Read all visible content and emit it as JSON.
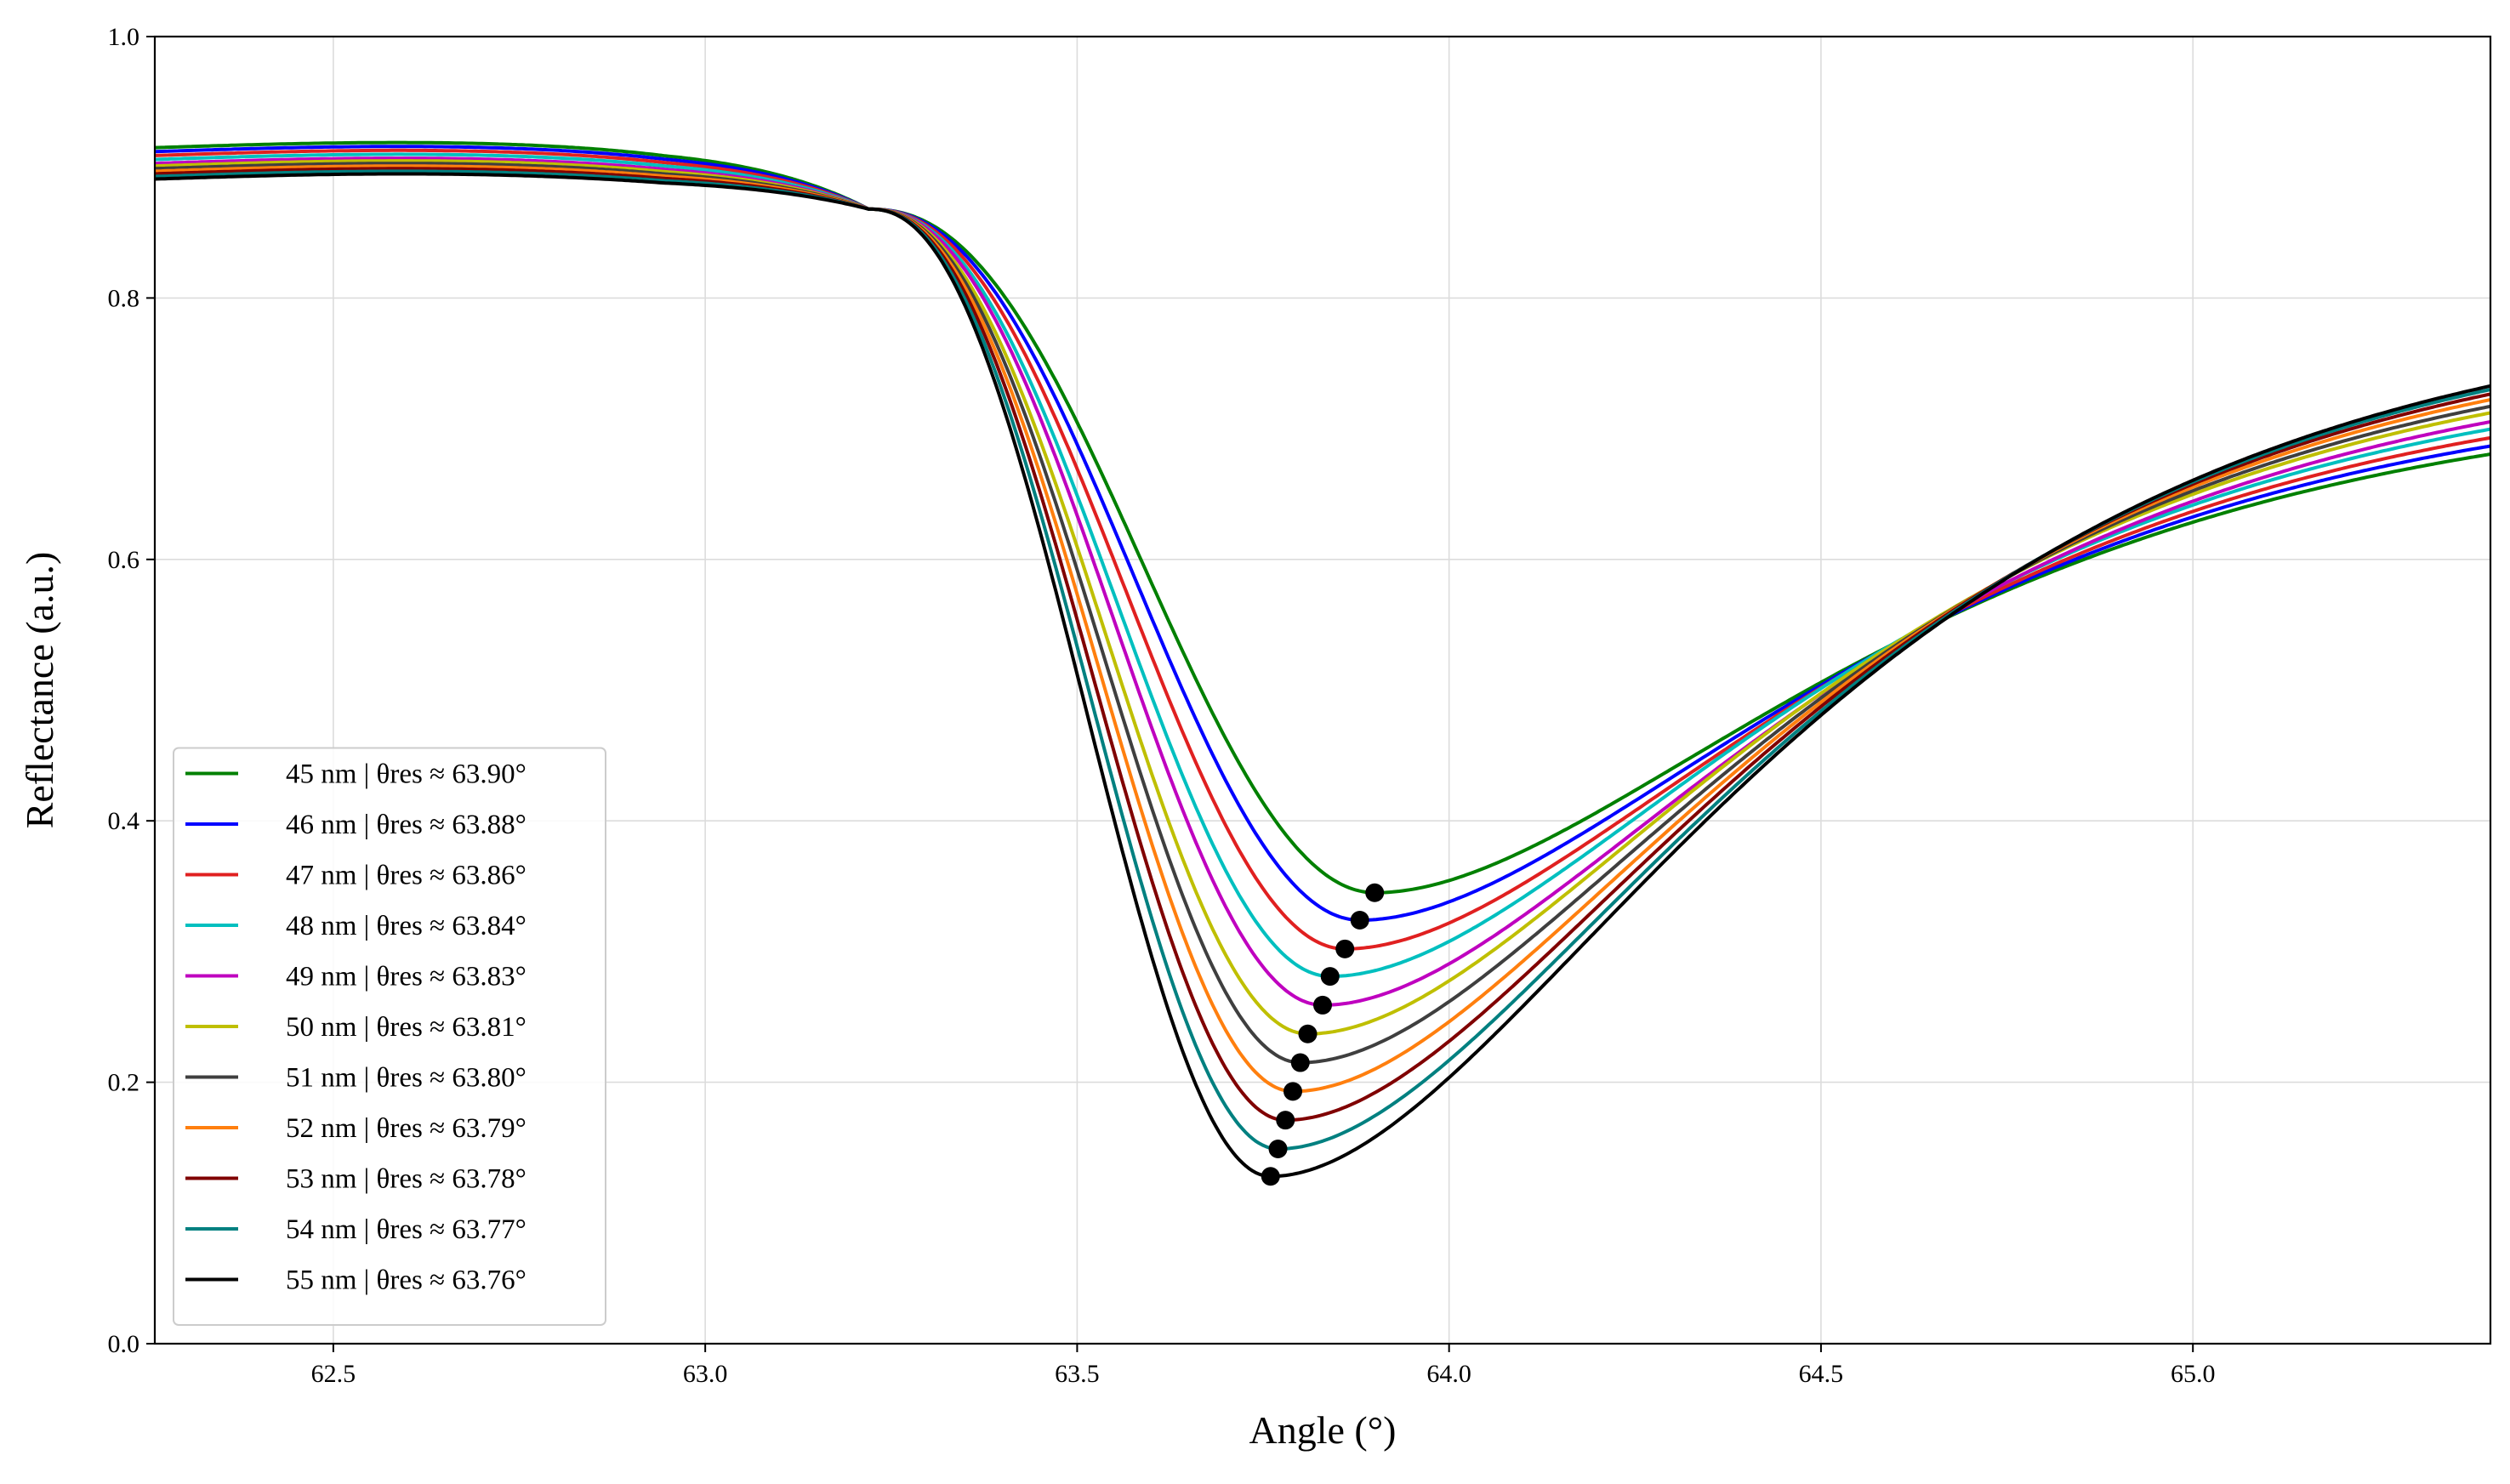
{
  "chart_data": {
    "type": "line",
    "title": "",
    "xlabel": "Angle (°)",
    "ylabel": "Reflectance (a.u.)",
    "xlim": [
      62.26,
      65.4
    ],
    "ylim": [
      0.0,
      1.0
    ],
    "xticks": [
      62.5,
      63.0,
      63.5,
      64.0,
      64.5,
      65.0
    ],
    "xtick_labels": [
      "62.5",
      "63.0",
      "63.5",
      "64.0",
      "64.5",
      "65.0"
    ],
    "yticks": [
      0.0,
      0.2,
      0.4,
      0.6,
      0.8,
      1.0
    ],
    "ytick_labels": [
      "0.0",
      "0.2",
      "0.4",
      "0.6",
      "0.8",
      "1.0"
    ],
    "grid": true,
    "legend_position": "lower-left",
    "series": [
      {
        "name": "45 nm | θres ≈ 63.90°",
        "color": "#008000",
        "min_x": 63.9,
        "min_y": 0.345,
        "left_plateau": 0.915,
        "right_end": 0.73
      },
      {
        "name": "46 nm | θres ≈ 63.88°",
        "color": "#0000ff",
        "min_x": 63.88,
        "min_y": 0.324,
        "left_plateau": 0.912,
        "right_end": 0.738
      },
      {
        "name": "47 nm | θres ≈ 63.86°",
        "color": "#e02020",
        "min_x": 63.86,
        "min_y": 0.302,
        "left_plateau": 0.909,
        "right_end": 0.746
      },
      {
        "name": "48 nm | θres ≈ 63.84°",
        "color": "#00bfbf",
        "min_x": 63.84,
        "min_y": 0.281,
        "left_plateau": 0.906,
        "right_end": 0.754
      },
      {
        "name": "49 nm | θres ≈ 63.83°",
        "color": "#bf00bf",
        "min_x": 63.83,
        "min_y": 0.259,
        "left_plateau": 0.903,
        "right_end": 0.762
      },
      {
        "name": "50 nm | θres ≈ 63.81°",
        "color": "#bfbf00",
        "min_x": 63.81,
        "min_y": 0.237,
        "left_plateau": 0.901,
        "right_end": 0.77
      },
      {
        "name": "51 nm | θres ≈ 63.80°",
        "color": "#3f3f3f",
        "min_x": 63.8,
        "min_y": 0.215,
        "left_plateau": 0.899,
        "right_end": 0.777
      },
      {
        "name": "52 nm | θres ≈ 63.79°",
        "color": "#ff7f0e",
        "min_x": 63.79,
        "min_y": 0.193,
        "left_plateau": 0.897,
        "right_end": 0.784
      },
      {
        "name": "53 nm | θres ≈ 63.78°",
        "color": "#800000",
        "min_x": 63.78,
        "min_y": 0.171,
        "left_plateau": 0.895,
        "right_end": 0.79
      },
      {
        "name": "54 nm | θres ≈ 63.77°",
        "color": "#008080",
        "min_x": 63.77,
        "min_y": 0.149,
        "left_plateau": 0.893,
        "right_end": 0.795
      },
      {
        "name": "55 nm | θres ≈ 63.76°",
        "color": "#000000",
        "min_x": 63.76,
        "min_y": 0.128,
        "left_plateau": 0.891,
        "right_end": 0.799
      }
    ],
    "resonance_markers": [
      {
        "x": 63.9,
        "y": 0.345
      },
      {
        "x": 63.88,
        "y": 0.324
      },
      {
        "x": 63.86,
        "y": 0.302
      },
      {
        "x": 63.84,
        "y": 0.281
      },
      {
        "x": 63.83,
        "y": 0.259
      },
      {
        "x": 63.81,
        "y": 0.237
      },
      {
        "x": 63.8,
        "y": 0.215
      },
      {
        "x": 63.79,
        "y": 0.193
      },
      {
        "x": 63.78,
        "y": 0.171
      },
      {
        "x": 63.77,
        "y": 0.149
      },
      {
        "x": 63.76,
        "y": 0.128
      }
    ]
  }
}
